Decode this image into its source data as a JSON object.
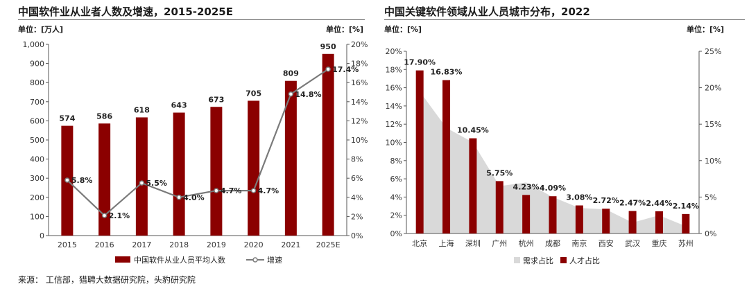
{
  "left": {
    "title": "中国软件业从业者人数及增速，2015-2025E",
    "unit_left": "单位：[万人]",
    "unit_right": "单位：[%]"
  },
  "right": {
    "title": "中国关键软件领域从业人员城市分布，2022",
    "unit_left": "单位：[%]",
    "unit_right": "单位：[%]"
  },
  "source": "来源： 工信部，猎聘大数据研究院，头豹研究院",
  "colors": {
    "bar": "#8b0000",
    "line": "#7a7a7a",
    "area": "#d9d9d9"
  },
  "chart_data": [
    {
      "type": "bar",
      "title": "中国软件业从业者人数及增速，2015-2025E",
      "categories": [
        "2015",
        "2016",
        "2017",
        "2018",
        "2019",
        "2020",
        "2021",
        "2025E"
      ],
      "series": [
        {
          "name": "中国软件从业人员平均人数",
          "type": "bar",
          "axis": "left",
          "values": [
            574,
            586,
            618,
            643,
            673,
            705,
            809,
            950
          ],
          "labels": [
            "574",
            "586",
            "618",
            "643",
            "673",
            "705",
            "809",
            "950"
          ]
        },
        {
          "name": "增速",
          "type": "line",
          "axis": "right",
          "values": [
            5.8,
            2.1,
            5.5,
            4.0,
            4.7,
            4.7,
            14.8,
            17.4
          ],
          "labels": [
            "5.8%",
            "2.1%",
            "5.5%",
            "4.0%",
            "4.7%",
            "4.7%",
            "14.8%",
            "17.4%"
          ]
        }
      ],
      "y_left": {
        "min": 0,
        "max": 1000,
        "ticks": [
          "0",
          "100",
          "200",
          "300",
          "400",
          "500",
          "600",
          "700",
          "800",
          "900",
          "1,000"
        ]
      },
      "y_right": {
        "min": 0,
        "max": 20,
        "ticks": [
          "0%",
          "2%",
          "4%",
          "6%",
          "8%",
          "10%",
          "12%",
          "14%",
          "16%",
          "18%",
          "20%"
        ]
      },
      "legend": [
        "中国软件从业人员平均人数",
        "增速"
      ],
      "legend_position": "bottom",
      "grid": false
    },
    {
      "type": "bar",
      "title": "中国关键软件领域从业人员城市分布，2022",
      "categories": [
        "北京",
        "上海",
        "深圳",
        "广州",
        "杭州",
        "成都",
        "南京",
        "西安",
        "武汉",
        "重庆",
        "苏州"
      ],
      "series": [
        {
          "name": "需求占比",
          "type": "area",
          "axis": "right",
          "values": [
            19.5,
            14.5,
            12.5,
            6.5,
            7.0,
            5.0,
            3.5,
            3.3,
            1.5,
            2.5,
            1.0
          ]
        },
        {
          "name": "人才占比",
          "type": "bar",
          "axis": "left",
          "values": [
            17.9,
            16.83,
            10.45,
            5.75,
            4.23,
            4.09,
            3.08,
            2.72,
            2.47,
            2.44,
            2.14
          ],
          "labels": [
            "17.90%",
            "16.83%",
            "10.45%",
            "5.75%",
            "4.23%",
            "4.09%",
            "3.08%",
            "2.72%",
            "2.47%",
            "2.44%",
            "2.14%"
          ]
        }
      ],
      "y_left": {
        "min": 0,
        "max": 20,
        "ticks": [
          "0%",
          "2%",
          "4%",
          "6%",
          "8%",
          "10%",
          "12%",
          "14%",
          "16%",
          "18%",
          "20%"
        ]
      },
      "y_right": {
        "min": 0,
        "max": 25,
        "ticks": [
          "0%",
          "5%",
          "10%",
          "15%",
          "20%",
          "25%"
        ]
      },
      "legend": [
        "需求占比",
        "人才占比"
      ],
      "legend_position": "bottom",
      "grid": false
    }
  ]
}
